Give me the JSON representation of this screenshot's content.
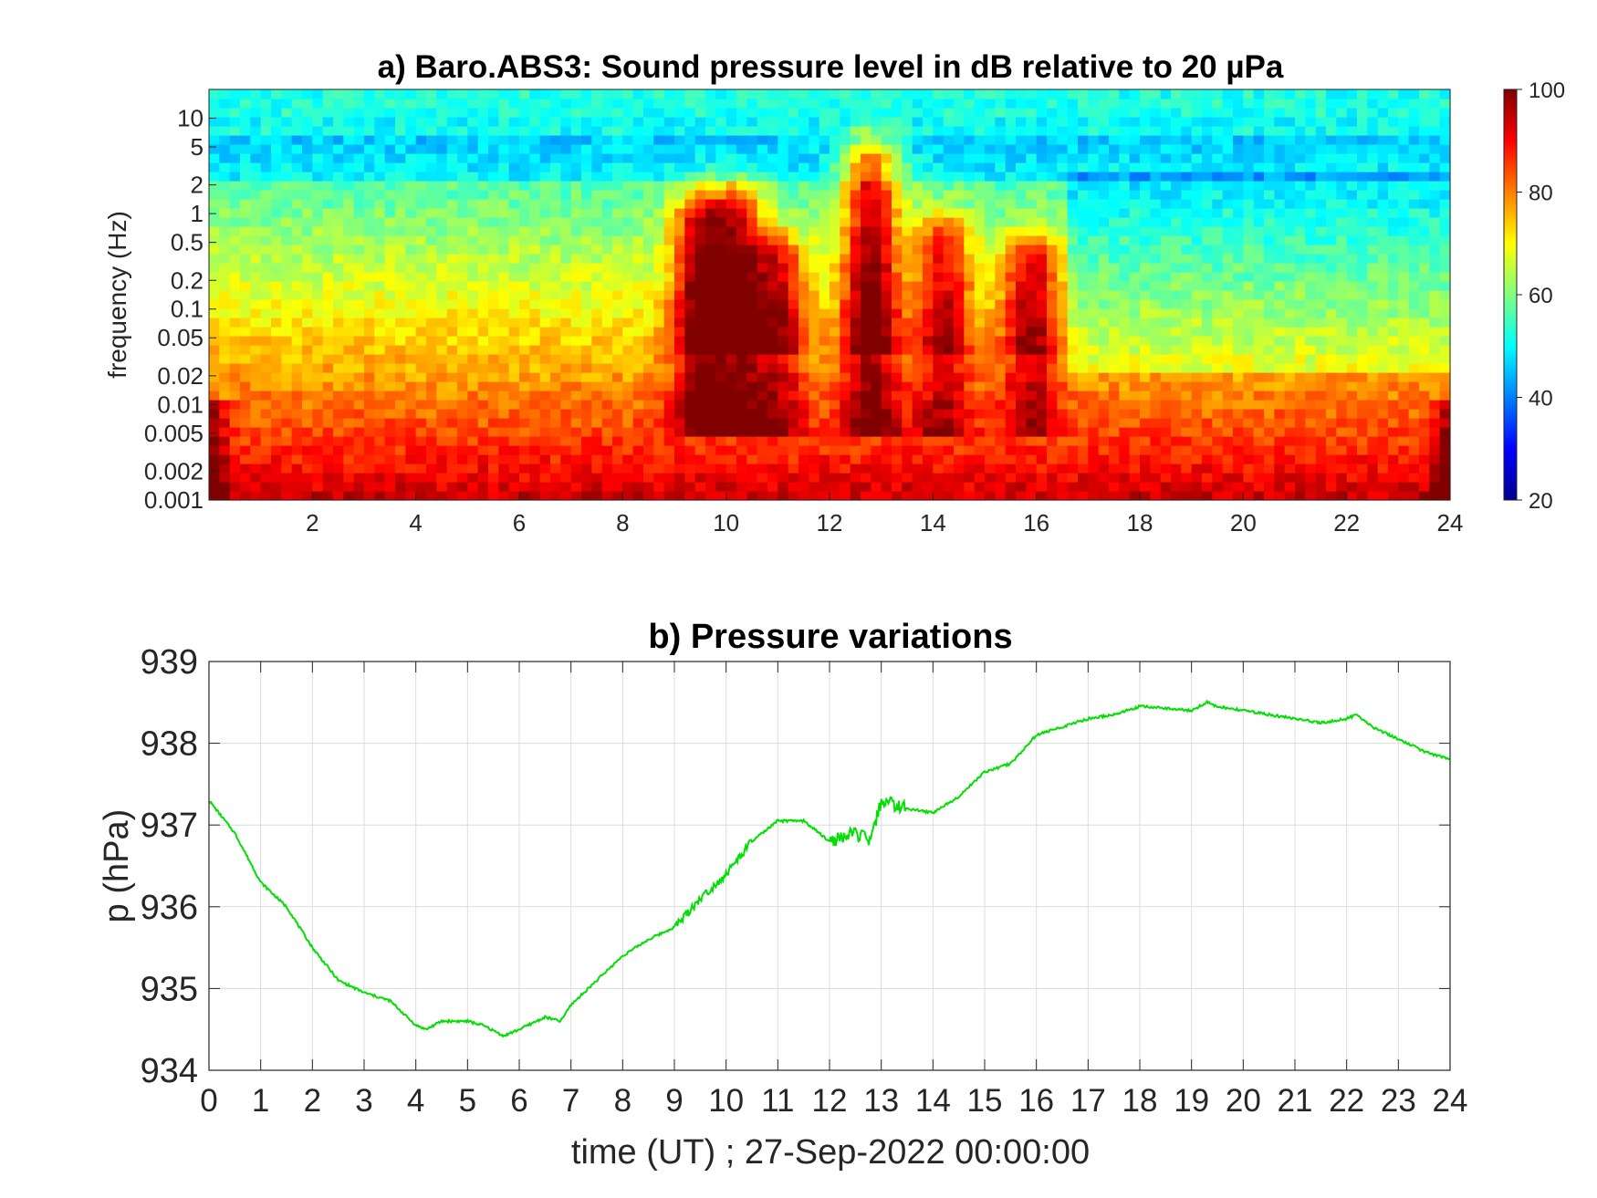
{
  "chart_data": [
    {
      "type": "heatmap",
      "title": "a) Baro.ABS3: Sound pressure level in dB relative to 20 µPa",
      "xlabel": "",
      "ylabel": "frequency (Hz)",
      "x_range": [
        0,
        24
      ],
      "x_ticks": [
        "2",
        "4",
        "6",
        "8",
        "10",
        "12",
        "14",
        "16",
        "18",
        "20",
        "22",
        "24"
      ],
      "y_scale": "log",
      "y_range": [
        0.001,
        20
      ],
      "y_ticks": [
        "0.001",
        "0.002",
        "0.005",
        "0.01",
        "0.02",
        "0.05",
        "0.1",
        "0.2",
        "0.5",
        "1",
        "2",
        "5",
        "10"
      ],
      "colorbar": {
        "colormap": "jet",
        "range": [
          20,
          100
        ],
        "ticks": [
          "20",
          "40",
          "60",
          "80",
          "100"
        ]
      },
      "activity_events": [
        {
          "time": 9.5,
          "level_dB": 95,
          "top_freq_Hz": 0.8
        },
        {
          "time": 10.2,
          "level_dB": 92,
          "top_freq_Hz": 1.0
        },
        {
          "time": 11.0,
          "level_dB": 88,
          "top_freq_Hz": 0.3
        },
        {
          "time": 12.8,
          "level_dB": 98,
          "top_freq_Hz": 3.0
        },
        {
          "time": 14.2,
          "level_dB": 88,
          "top_freq_Hz": 0.5
        },
        {
          "time": 15.9,
          "level_dB": 90,
          "top_freq_Hz": 0.3
        }
      ],
      "grid": false,
      "legend": "colorbar-right"
    },
    {
      "type": "line",
      "title": "b) Pressure variations",
      "xlabel": "time (UT) ; 27-Sep-2022 00:00:00",
      "ylabel": "p (hPa)",
      "xlim": [
        0,
        24
      ],
      "ylim": [
        934,
        939
      ],
      "x_ticks": [
        "0",
        "1",
        "2",
        "3",
        "4",
        "5",
        "6",
        "7",
        "8",
        "9",
        "10",
        "11",
        "12",
        "13",
        "14",
        "15",
        "16",
        "17",
        "18",
        "19",
        "20",
        "21",
        "22",
        "23",
        "24"
      ],
      "y_ticks": [
        "934",
        "935",
        "936",
        "937",
        "938",
        "939"
      ],
      "grid": true,
      "line_color": "#00e000",
      "series": [
        {
          "x": [
            0,
            0.5,
            1,
            1.5,
            2,
            2.5,
            3,
            3.5,
            4,
            4.2,
            4.5,
            5,
            5.3,
            5.7,
            6,
            6.5,
            6.8,
            7,
            7.5,
            8,
            8.5,
            9,
            9.5,
            10,
            10.5,
            11,
            11.5,
            12,
            12.5,
            12.8,
            13,
            13.5,
            14,
            14.5,
            15,
            15.5,
            16,
            16.5,
            17,
            17.5,
            18,
            18.5,
            19,
            19.3,
            19.5,
            20,
            20.5,
            21,
            21.5,
            22,
            22.2,
            22.5,
            23,
            23.5,
            24
          ],
          "y": [
            937.3,
            936.9,
            936.3,
            936.0,
            935.5,
            935.1,
            934.95,
            934.85,
            934.55,
            934.5,
            934.6,
            934.6,
            934.55,
            934.42,
            934.5,
            934.65,
            934.6,
            934.8,
            935.1,
            935.4,
            935.6,
            935.75,
            936.1,
            936.4,
            936.8,
            937.05,
            937.05,
            936.8,
            936.9,
            936.8,
            937.3,
            937.2,
            937.15,
            937.35,
            937.65,
            937.75,
            938.1,
            938.2,
            938.3,
            938.35,
            938.45,
            938.43,
            938.4,
            938.5,
            938.45,
            938.4,
            938.35,
            938.3,
            938.25,
            938.3,
            938.35,
            938.2,
            938.05,
            937.9,
            937.8
          ]
        }
      ]
    }
  ]
}
